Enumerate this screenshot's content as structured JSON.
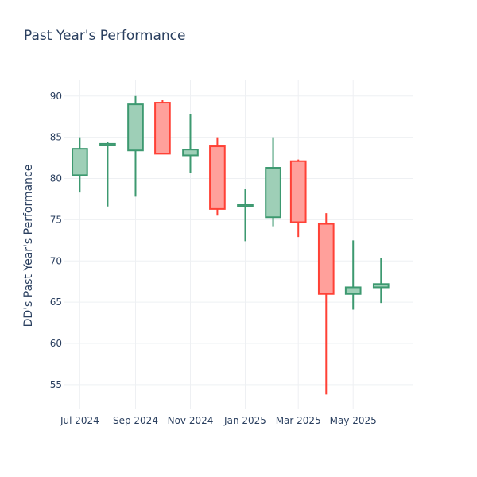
{
  "chart_data": {
    "type": "candlestick",
    "title": "Past Year's Performance",
    "xlabel": "",
    "ylabel": "DD's Past Year's Performance",
    "ylim": [
      52,
      92
    ],
    "yticks": [
      55,
      60,
      65,
      70,
      75,
      80,
      85,
      90
    ],
    "xlim": [
      "2024-06-13",
      "2025-07-07"
    ],
    "xticks": [
      {
        "date": "2024-07-01",
        "label": "Jul 2024"
      },
      {
        "date": "2024-09-01",
        "label": "Sep 2024"
      },
      {
        "date": "2024-11-01",
        "label": "Nov 2024"
      },
      {
        "date": "2025-01-01",
        "label": "Jan 2025"
      },
      {
        "date": "2025-03-01",
        "label": "Mar 2025"
      },
      {
        "date": "2025-05-01",
        "label": "May 2025"
      }
    ],
    "grid": true,
    "colors": {
      "increasing_line": "#3d9970",
      "increasing_fill": "#9ecfb7",
      "decreasing_line": "#ff4136",
      "decreasing_fill": "#ffa09b"
    },
    "candles": [
      {
        "date": "2024-07-01",
        "open": 80.4,
        "high": 85.0,
        "low": 78.3,
        "close": 83.6
      },
      {
        "date": "2024-08-01",
        "open": 84.0,
        "high": 84.4,
        "low": 76.6,
        "close": 84.2
      },
      {
        "date": "2024-09-01",
        "open": 83.4,
        "high": 90.0,
        "low": 77.8,
        "close": 89.0
      },
      {
        "date": "2024-10-01",
        "open": 89.2,
        "high": 89.5,
        "low": 83.0,
        "close": 83.0
      },
      {
        "date": "2024-11-01",
        "open": 82.8,
        "high": 87.8,
        "low": 80.7,
        "close": 83.5
      },
      {
        "date": "2024-12-01",
        "open": 83.9,
        "high": 85.0,
        "low": 75.5,
        "close": 76.3
      },
      {
        "date": "2025-01-01",
        "open": 76.6,
        "high": 78.7,
        "low": 72.4,
        "close": 76.8
      },
      {
        "date": "2025-02-01",
        "open": 75.3,
        "high": 85.0,
        "low": 74.2,
        "close": 81.3
      },
      {
        "date": "2025-03-01",
        "open": 82.1,
        "high": 82.3,
        "low": 72.9,
        "close": 74.7
      },
      {
        "date": "2025-04-01",
        "open": 74.5,
        "high": 75.8,
        "low": 53.8,
        "close": 66.0
      },
      {
        "date": "2025-05-01",
        "open": 66.0,
        "high": 72.5,
        "low": 64.1,
        "close": 66.8
      },
      {
        "date": "2025-06-01",
        "open": 66.8,
        "high": 70.4,
        "low": 64.9,
        "close": 67.2
      }
    ]
  }
}
